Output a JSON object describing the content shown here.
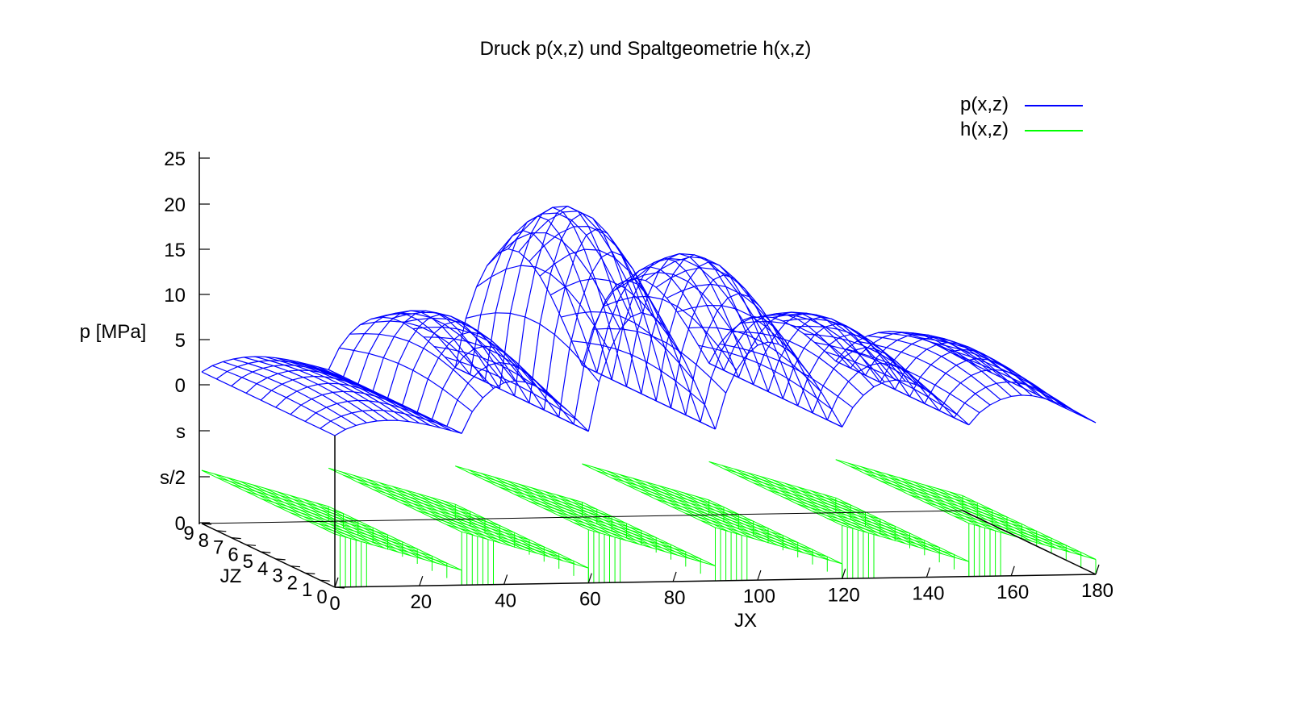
{
  "chart_data": {
    "type": "surface-3d",
    "title": "Druck p(x,z) und Spaltgeometrie h(x,z)",
    "xlabel": "JX",
    "ylabel": "JZ",
    "zlabel": "p [MPa]",
    "xlim": [
      0,
      180
    ],
    "ylim": [
      0,
      9
    ],
    "x_ticks": [
      "0",
      "20",
      "40",
      "60",
      "80",
      "100",
      "120",
      "140",
      "160",
      "180"
    ],
    "y_ticks": [
      "0",
      "1",
      "2",
      "3",
      "4",
      "5",
      "6",
      "7",
      "8",
      "9"
    ],
    "z_ticks": [
      "0",
      "s/2",
      "s",
      "0",
      "5",
      "10",
      "15",
      "20",
      "25"
    ],
    "grid": false,
    "legend_position": "top-right",
    "colors": {
      "pressure": "#0000ff",
      "gap": "#00ff00",
      "axes": "#000000"
    },
    "series": [
      {
        "name": "p(x,z)",
        "color": "#0000ff",
        "style": "wireframe",
        "peaks": [
          {
            "x_start": 0,
            "x_end": 30,
            "p_max": 2.5
          },
          {
            "x_start": 30,
            "x_end": 60,
            "p_max": 9
          },
          {
            "x_start": 60,
            "x_end": 90,
            "p_max": 20.5
          },
          {
            "x_start": 90,
            "x_end": 120,
            "p_max": 15
          },
          {
            "x_start": 120,
            "x_end": 150,
            "p_max": 8
          },
          {
            "x_start": 150,
            "x_end": 180,
            "p_max": 5
          }
        ]
      },
      {
        "name": "h(x,z)",
        "color": "#00ff00",
        "style": "wireframe",
        "segments": [
          {
            "x_start": 0,
            "x_end": 30
          },
          {
            "x_start": 30,
            "x_end": 60
          },
          {
            "x_start": 60,
            "x_end": 90
          },
          {
            "x_start": 90,
            "x_end": 120
          },
          {
            "x_start": 120,
            "x_end": 150
          },
          {
            "x_start": 150,
            "x_end": 180
          }
        ],
        "h_high": "s/2",
        "h_low": "0"
      }
    ]
  }
}
